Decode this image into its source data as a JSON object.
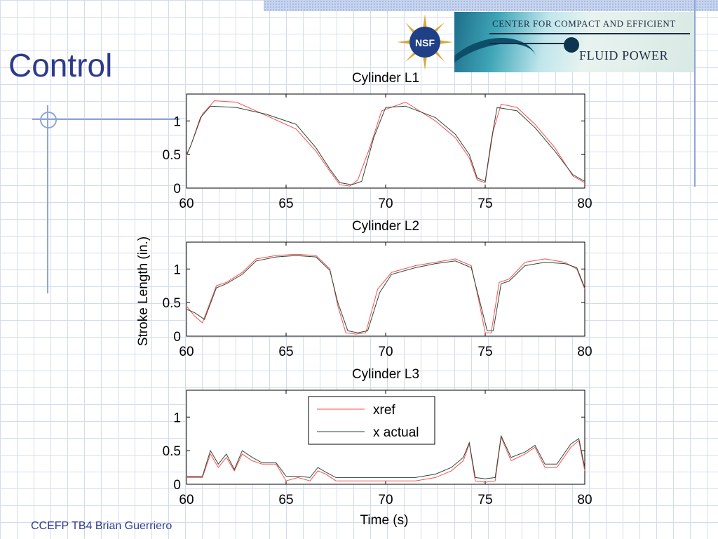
{
  "slide": {
    "title": "Control",
    "footer": "CCEFP TB4 Brian Guerriero"
  },
  "logos": {
    "nsf_text": "NSF",
    "banner_line1": "CENTER FOR COMPACT AND EFFICIENT",
    "banner_line2": "FLUID POWER"
  },
  "colors": {
    "title": "#2e3a8c",
    "xref": "#ff4d4d",
    "x_actual": "#2a4a3a",
    "grid": "#d4dcec"
  },
  "figure": {
    "ylabel": "Stroke Length (in.)",
    "xlabel": "Time (s)"
  },
  "chart_data": [
    {
      "type": "line",
      "title": "Cylinder L1",
      "xlim": [
        60,
        80
      ],
      "ylim": [
        0,
        1.4
      ],
      "xticks": [
        60,
        65,
        70,
        75,
        80
      ],
      "yticks": [
        0,
        0.5,
        1
      ],
      "ytick_labels": [
        "0",
        "0.5",
        "1"
      ],
      "series": [
        {
          "name": "xref",
          "x": [
            60,
            60.3,
            60.8,
            61.4,
            62.5,
            64,
            65.5,
            66.5,
            67.2,
            67.7,
            68.2,
            68.6,
            69.2,
            69.8,
            71,
            72.5,
            73.5,
            74.2,
            74.6,
            75,
            75.4,
            75.8,
            76.6,
            77.5,
            78.5,
            79.4,
            80
          ],
          "y": [
            0.48,
            0.7,
            1.1,
            1.3,
            1.28,
            1.08,
            0.88,
            0.55,
            0.25,
            0.05,
            0.03,
            0.12,
            0.6,
            1.15,
            1.28,
            1.0,
            0.75,
            0.45,
            0.12,
            0.08,
            0.85,
            1.25,
            1.2,
            0.95,
            0.6,
            0.18,
            0.08
          ]
        },
        {
          "name": "x actual",
          "x": [
            60,
            60.2,
            60.7,
            61.2,
            62.5,
            64,
            65.5,
            66.5,
            67.2,
            67.7,
            68.3,
            68.8,
            69.4,
            70,
            71,
            72.5,
            73.5,
            74.2,
            74.6,
            75,
            75.3,
            75.6,
            76.6,
            77.5,
            78.5,
            79.4,
            80
          ],
          "y": [
            0.5,
            0.62,
            1.05,
            1.22,
            1.2,
            1.1,
            0.95,
            0.6,
            0.28,
            0.08,
            0.05,
            0.1,
            0.75,
            1.2,
            1.22,
            1.05,
            0.8,
            0.5,
            0.15,
            0.1,
            0.7,
            1.2,
            1.15,
            0.9,
            0.55,
            0.2,
            0.1
          ]
        }
      ]
    },
    {
      "type": "line",
      "title": "Cylinder L2",
      "xlim": [
        60,
        80
      ],
      "ylim": [
        0,
        1.4
      ],
      "xticks": [
        60,
        65,
        70,
        75,
        80
      ],
      "yticks": [
        0,
        0.5,
        1
      ],
      "ytick_labels": [
        "0",
        "0.5",
        "1"
      ],
      "series": [
        {
          "name": "xref",
          "x": [
            60,
            60.4,
            60.8,
            61.5,
            62,
            62.8,
            63.5,
            64.5,
            65.5,
            66.5,
            67.2,
            67.6,
            68,
            68.5,
            69,
            69.6,
            70.3,
            71.5,
            72.5,
            73.5,
            74.3,
            74.7,
            75,
            75.3,
            75.7,
            76.2,
            77,
            78,
            79,
            79.6,
            80
          ],
          "y": [
            0.45,
            0.3,
            0.2,
            0.75,
            0.8,
            0.95,
            1.15,
            1.2,
            1.22,
            1.2,
            1.0,
            0.45,
            0.05,
            0.03,
            0.05,
            0.7,
            0.95,
            1.05,
            1.1,
            1.15,
            1.05,
            0.5,
            0.05,
            0.05,
            0.8,
            0.85,
            1.1,
            1.15,
            1.1,
            1.0,
            0.7
          ]
        },
        {
          "name": "x actual",
          "x": [
            60,
            60.4,
            60.9,
            61.5,
            62,
            62.8,
            63.5,
            64.5,
            65.5,
            66.5,
            67.2,
            67.6,
            68.1,
            68.6,
            69.1,
            69.7,
            70.3,
            71.5,
            72.5,
            73.5,
            74.3,
            74.7,
            75.1,
            75.4,
            75.8,
            76.2,
            77,
            78,
            79,
            79.6,
            80
          ],
          "y": [
            0.4,
            0.35,
            0.25,
            0.72,
            0.78,
            0.92,
            1.12,
            1.18,
            1.2,
            1.18,
            0.98,
            0.5,
            0.08,
            0.05,
            0.08,
            0.65,
            0.92,
            1.02,
            1.08,
            1.12,
            1.02,
            0.55,
            0.08,
            0.08,
            0.78,
            0.82,
            1.05,
            1.1,
            1.08,
            1.02,
            0.72
          ]
        }
      ]
    },
    {
      "type": "line",
      "title": "Cylinder L3",
      "xlim": [
        60,
        80
      ],
      "ylim": [
        0,
        1.4
      ],
      "xticks": [
        60,
        65,
        70,
        75,
        80
      ],
      "yticks": [
        0,
        0.5,
        1
      ],
      "ytick_labels": [
        "0",
        "0.5",
        "1"
      ],
      "legend": "top-center",
      "series": [
        {
          "name": "xref",
          "x": [
            60,
            60.8,
            61.2,
            61.6,
            62,
            62.4,
            62.8,
            63.3,
            63.8,
            64.5,
            65,
            65.6,
            66.2,
            66.6,
            67,
            67.5,
            68.5,
            69.5,
            70.5,
            71.5,
            72.5,
            73.3,
            73.9,
            74.2,
            74.5,
            75,
            75.5,
            75.8,
            76.3,
            77,
            77.5,
            78,
            78.6,
            79.3,
            79.7,
            80
          ],
          "y": [
            0.1,
            0.1,
            0.45,
            0.25,
            0.4,
            0.2,
            0.45,
            0.35,
            0.3,
            0.3,
            0.05,
            0.1,
            0.05,
            0.2,
            0.15,
            0.05,
            0.05,
            0.05,
            0.05,
            0.05,
            0.1,
            0.2,
            0.35,
            0.6,
            0.05,
            0.03,
            0.05,
            0.7,
            0.35,
            0.45,
            0.55,
            0.25,
            0.25,
            0.55,
            0.65,
            0.2
          ]
        },
        {
          "name": "x actual",
          "x": [
            60,
            60.8,
            61.2,
            61.6,
            62,
            62.4,
            62.8,
            63.3,
            63.8,
            64.5,
            65,
            65.6,
            66.2,
            66.6,
            67,
            67.5,
            68.5,
            69.5,
            70.5,
            71.5,
            72.5,
            73.3,
            73.9,
            74.2,
            74.5,
            75,
            75.5,
            75.8,
            76.3,
            77,
            77.5,
            78,
            78.6,
            79.3,
            79.7,
            80
          ],
          "y": [
            0.12,
            0.12,
            0.5,
            0.3,
            0.45,
            0.22,
            0.5,
            0.4,
            0.32,
            0.32,
            0.12,
            0.12,
            0.1,
            0.25,
            0.18,
            0.1,
            0.1,
            0.1,
            0.1,
            0.1,
            0.15,
            0.25,
            0.4,
            0.62,
            0.1,
            0.08,
            0.1,
            0.72,
            0.4,
            0.48,
            0.58,
            0.3,
            0.3,
            0.6,
            0.68,
            0.25
          ]
        }
      ]
    }
  ]
}
